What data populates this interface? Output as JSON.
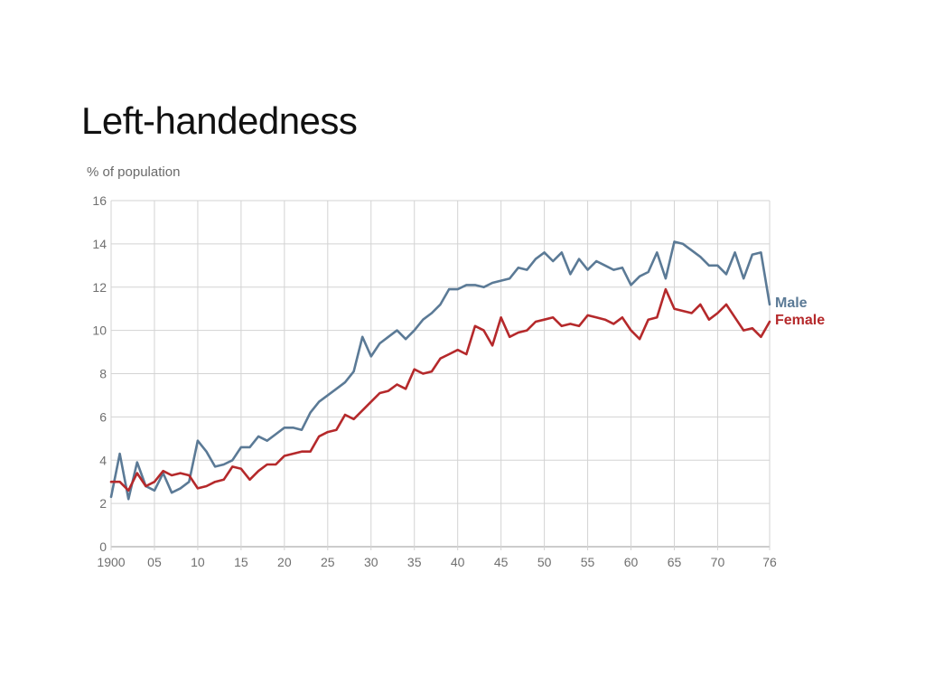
{
  "chart_data": {
    "type": "line",
    "title": "Left-handedness",
    "ylabel": "% of population",
    "xlabel": "",
    "ylim": [
      0,
      16
    ],
    "xlim": [
      1900,
      1976
    ],
    "yticks": [
      0,
      2,
      4,
      6,
      8,
      10,
      12,
      14,
      16
    ],
    "xticks": [
      {
        "value": 1900,
        "label": "1900"
      },
      {
        "value": 1905,
        "label": "05"
      },
      {
        "value": 1910,
        "label": "10"
      },
      {
        "value": 1915,
        "label": "15"
      },
      {
        "value": 1920,
        "label": "20"
      },
      {
        "value": 1925,
        "label": "25"
      },
      {
        "value": 1930,
        "label": "30"
      },
      {
        "value": 1935,
        "label": "35"
      },
      {
        "value": 1940,
        "label": "40"
      },
      {
        "value": 1945,
        "label": "45"
      },
      {
        "value": 1950,
        "label": "50"
      },
      {
        "value": 1955,
        "label": "55"
      },
      {
        "value": 1960,
        "label": "60"
      },
      {
        "value": 1965,
        "label": "65"
      },
      {
        "value": 1970,
        "label": "70"
      },
      {
        "value": 1976,
        "label": "76"
      }
    ],
    "grid": true,
    "legend": "right-end",
    "x": [
      1900,
      1901,
      1902,
      1903,
      1904,
      1905,
      1906,
      1907,
      1908,
      1909,
      1910,
      1911,
      1912,
      1913,
      1914,
      1915,
      1916,
      1917,
      1918,
      1919,
      1920,
      1921,
      1922,
      1923,
      1924,
      1925,
      1926,
      1927,
      1928,
      1929,
      1930,
      1931,
      1932,
      1933,
      1934,
      1935,
      1936,
      1937,
      1938,
      1939,
      1940,
      1941,
      1942,
      1943,
      1944,
      1945,
      1946,
      1947,
      1948,
      1949,
      1950,
      1951,
      1952,
      1953,
      1954,
      1955,
      1956,
      1957,
      1958,
      1959,
      1960,
      1961,
      1962,
      1963,
      1964,
      1965,
      1966,
      1967,
      1968,
      1969,
      1970,
      1971,
      1972,
      1973,
      1974,
      1975,
      1976
    ],
    "series": [
      {
        "name": "Male",
        "color": "#5b7a96",
        "values": [
          2.3,
          4.3,
          2.2,
          3.9,
          2.8,
          2.6,
          3.4,
          2.5,
          2.7,
          3.0,
          4.9,
          4.4,
          3.7,
          3.8,
          4.0,
          4.6,
          4.6,
          5.1,
          4.9,
          5.2,
          5.5,
          5.5,
          5.4,
          6.2,
          6.7,
          7.0,
          7.3,
          7.6,
          8.1,
          9.7,
          8.8,
          9.4,
          9.7,
          10.0,
          9.6,
          10.0,
          10.5,
          10.8,
          11.2,
          11.9,
          11.9,
          12.1,
          12.1,
          12.0,
          12.2,
          12.3,
          12.4,
          12.9,
          12.8,
          13.3,
          13.6,
          13.2,
          13.6,
          12.6,
          13.3,
          12.8,
          13.2,
          13.0,
          12.8,
          12.9,
          12.1,
          12.5,
          12.7,
          13.6,
          12.4,
          14.1,
          14.0,
          13.7,
          13.4,
          13.0,
          13.0,
          12.6,
          13.6,
          12.4,
          13.5,
          13.6,
          11.2
        ]
      },
      {
        "name": "Female",
        "color": "#b5292b",
        "values": [
          3.0,
          3.0,
          2.6,
          3.4,
          2.8,
          3.0,
          3.5,
          3.3,
          3.4,
          3.3,
          2.7,
          2.8,
          3.0,
          3.1,
          3.7,
          3.6,
          3.1,
          3.5,
          3.8,
          3.8,
          4.2,
          4.3,
          4.4,
          4.4,
          5.1,
          5.3,
          5.4,
          6.1,
          5.9,
          6.3,
          6.7,
          7.1,
          7.2,
          7.5,
          7.3,
          8.2,
          8.0,
          8.1,
          8.7,
          8.9,
          9.1,
          8.9,
          10.2,
          10.0,
          9.3,
          10.6,
          9.7,
          9.9,
          10.0,
          10.4,
          10.5,
          10.6,
          10.2,
          10.3,
          10.2,
          10.7,
          10.6,
          10.5,
          10.3,
          10.6,
          10.0,
          9.6,
          10.5,
          10.6,
          11.9,
          11.0,
          10.9,
          10.8,
          11.2,
          10.5,
          10.8,
          11.2,
          10.6,
          10.0,
          10.1,
          9.7,
          10.4
        ]
      }
    ]
  }
}
